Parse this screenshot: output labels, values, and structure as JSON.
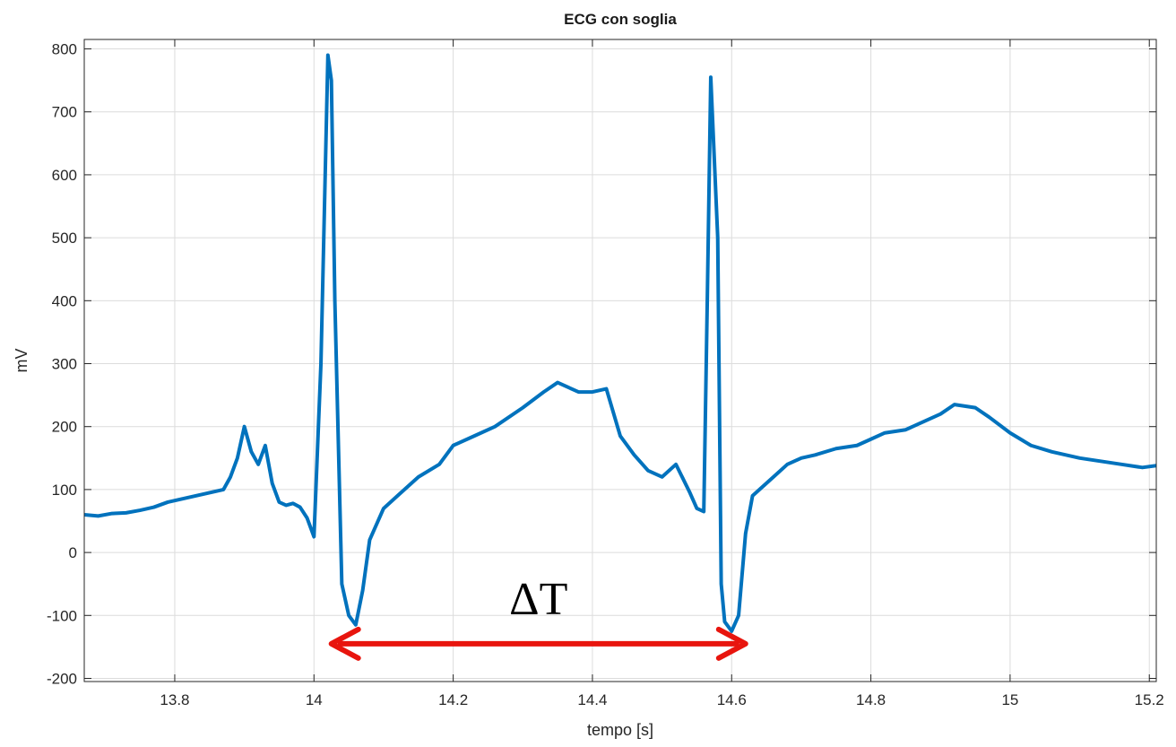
{
  "chart_data": {
    "type": "line",
    "title": "ECG con soglia",
    "xlabel": "tempo [s]",
    "ylabel": "mV",
    "xlim": [
      13.67,
      15.21
    ],
    "ylim": [
      -205,
      815
    ],
    "xticks": [
      13.8,
      14,
      14.2,
      14.4,
      14.6,
      14.8,
      15,
      15.2
    ],
    "xtick_labels": [
      "13.8",
      "14",
      "14.2",
      "14.4",
      "14.6",
      "14.8",
      "15",
      "15.2"
    ],
    "yticks": [
      -200,
      -100,
      0,
      100,
      200,
      300,
      400,
      500,
      600,
      700,
      800
    ],
    "ytick_labels": [
      "-200",
      "-100",
      "0",
      "100",
      "200",
      "300",
      "400",
      "500",
      "600",
      "700",
      "800"
    ],
    "grid": true,
    "series": [
      {
        "color": "#0072BD",
        "x": [
          13.67,
          13.69,
          13.71,
          13.73,
          13.75,
          13.77,
          13.79,
          13.81,
          13.83,
          13.85,
          13.87,
          13.88,
          13.89,
          13.9,
          13.91,
          13.92,
          13.93,
          13.94,
          13.95,
          13.96,
          13.97,
          13.98,
          13.99,
          14.0,
          14.01,
          14.02,
          14.025,
          14.03,
          14.04,
          14.05,
          14.06,
          14.07,
          14.08,
          14.1,
          14.12,
          14.15,
          14.18,
          14.2,
          14.23,
          14.26,
          14.3,
          14.33,
          14.35,
          14.38,
          14.4,
          14.42,
          14.44,
          14.46,
          14.48,
          14.5,
          14.52,
          14.54,
          14.55,
          14.56,
          14.565,
          14.57,
          14.58,
          14.585,
          14.59,
          14.6,
          14.61,
          14.62,
          14.63,
          14.64,
          14.66,
          14.68,
          14.7,
          14.72,
          14.75,
          14.78,
          14.8,
          14.82,
          14.85,
          14.88,
          14.9,
          14.92,
          14.95,
          14.97,
          15.0,
          15.03,
          15.06,
          15.1,
          15.13,
          15.16,
          15.19,
          15.21
        ],
        "y": [
          60,
          58,
          62,
          63,
          67,
          72,
          80,
          85,
          90,
          95,
          100,
          120,
          150,
          200,
          160,
          140,
          170,
          110,
          80,
          75,
          78,
          72,
          55,
          25,
          300,
          790,
          750,
          400,
          -50,
          -100,
          -115,
          -60,
          20,
          70,
          90,
          120,
          140,
          170,
          185,
          200,
          230,
          255,
          270,
          255,
          255,
          260,
          185,
          155,
          130,
          120,
          140,
          95,
          70,
          65,
          400,
          755,
          500,
          -50,
          -110,
          -125,
          -100,
          30,
          90,
          100,
          120,
          140,
          150,
          155,
          165,
          170,
          180,
          190,
          195,
          210,
          220,
          235,
          230,
          215,
          190,
          170,
          160,
          150,
          145,
          140,
          135,
          138
        ]
      }
    ],
    "annotation": {
      "text": "ΔT",
      "color": "#e8150e",
      "x_start": 14.025,
      "x_end": 14.62,
      "y": -145
    }
  }
}
